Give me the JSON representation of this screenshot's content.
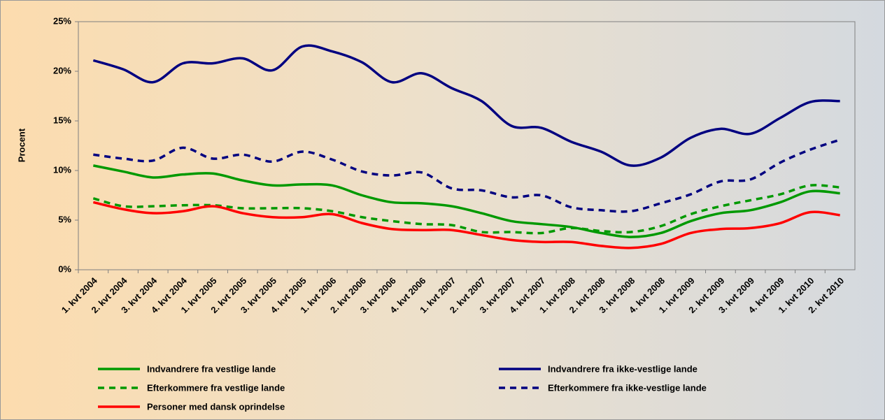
{
  "chart_data": {
    "type": "line",
    "y_label": "Procent",
    "categories": [
      "1. kvt 2004",
      "2. kvt 2004",
      "3. kvt 2004",
      "4. kvt 2004",
      "1. kvt 2005",
      "2. kvt 2005",
      "3. kvt 2005",
      "4. kvt 2005",
      "1. kvt 2006",
      "2. kvt 2006",
      "3. kvt 2006",
      "4. kvt 2006",
      "1. kvt 2007",
      "2. kvt 2007",
      "3. kvt 2007",
      "4. kvt 2007",
      "1. kvt 2008",
      "2. kvt 2008",
      "3. kvt 2008",
      "4. kvt 2008",
      "1. kvt 2009",
      "2. kvt 2009",
      "3. kvt 2009",
      "4. kvt 2009",
      "1. kvt 2010",
      "2. kvt 2010"
    ],
    "ylim": [
      0,
      25
    ],
    "yticks": [
      {
        "value": 0,
        "label": "0%"
      },
      {
        "value": 5,
        "label": "5%"
      },
      {
        "value": 10,
        "label": "10%"
      },
      {
        "value": 15,
        "label": "15%"
      },
      {
        "value": 20,
        "label": "20%"
      },
      {
        "value": 25,
        "label": "25%"
      }
    ],
    "series": [
      {
        "name": "Indvandrere fra vestlige lande",
        "color": "#009900",
        "dashed": false,
        "values": [
          10.5,
          9.9,
          9.3,
          9.6,
          9.7,
          9.0,
          8.5,
          8.6,
          8.5,
          7.5,
          6.8,
          6.7,
          6.4,
          5.7,
          4.9,
          4.6,
          4.3,
          3.7,
          3.3,
          3.7,
          4.9,
          5.7,
          6.0,
          6.8,
          7.9,
          7.7
        ]
      },
      {
        "name": "Indvandrere fra ikke-vestlige lande",
        "color": "#000080",
        "dashed": false,
        "values": [
          21.1,
          20.2,
          18.9,
          20.8,
          20.8,
          21.3,
          20.1,
          22.5,
          22.0,
          20.9,
          18.9,
          19.8,
          18.3,
          17.0,
          14.5,
          14.3,
          12.9,
          11.9,
          10.5,
          11.3,
          13.3,
          14.2,
          13.7,
          15.3,
          16.9,
          17.0
        ]
      },
      {
        "name": "Efterkommere fra vestlige lande",
        "color": "#009900",
        "dashed": true,
        "values": [
          7.2,
          6.4,
          6.4,
          6.5,
          6.5,
          6.2,
          6.2,
          6.2,
          5.9,
          5.3,
          4.9,
          4.6,
          4.5,
          3.8,
          3.8,
          3.7,
          4.2,
          3.9,
          3.8,
          4.4,
          5.6,
          6.4,
          7.0,
          7.6,
          8.5,
          8.3
        ]
      },
      {
        "name": "Efterkommere fra ikke-vestlige lande",
        "color": "#000080",
        "dashed": true,
        "values": [
          11.6,
          11.2,
          11.0,
          12.3,
          11.2,
          11.6,
          10.9,
          11.9,
          11.1,
          9.9,
          9.5,
          9.8,
          8.2,
          8.0,
          7.3,
          7.5,
          6.3,
          6.0,
          5.9,
          6.7,
          7.6,
          8.9,
          9.1,
          10.8,
          12.1,
          13.1
        ]
      },
      {
        "name": "Personer med dansk oprindelse",
        "color": "#ff0000",
        "dashed": false,
        "values": [
          6.8,
          6.1,
          5.7,
          5.9,
          6.4,
          5.7,
          5.3,
          5.3,
          5.6,
          4.7,
          4.1,
          4.0,
          4.0,
          3.5,
          3.0,
          2.8,
          2.8,
          2.4,
          2.2,
          2.6,
          3.7,
          4.1,
          4.2,
          4.7,
          5.8,
          5.5
        ]
      }
    ]
  }
}
